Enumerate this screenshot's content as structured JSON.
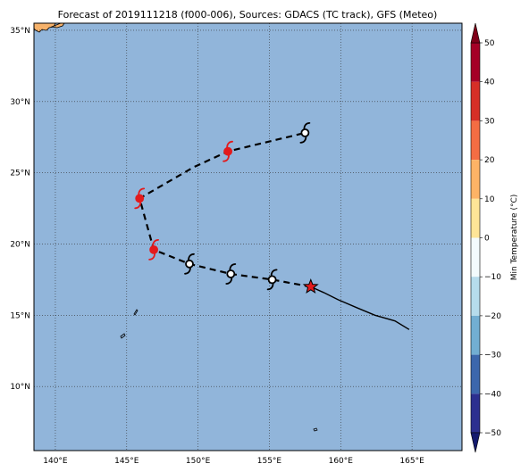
{
  "title": "Forecast of 2019111218 (f000-006), Sources: GDACS (TC track), GFS (Meteo)",
  "colors": {
    "ocean": "#91b5da",
    "land": "#f6b26b",
    "track": "#000000",
    "current_marker": "#e31a1c",
    "cyclone_red": "#e31a1c",
    "cyclone_white": "#ffffff"
  },
  "map": {
    "lon_range": [
      138.5,
      168.5
    ],
    "lat_range": [
      5.5,
      35.5
    ],
    "lon_ticks": [
      {
        "value": 140,
        "label": "140°E"
      },
      {
        "value": 145,
        "label": "145°E"
      },
      {
        "value": 150,
        "label": "150°E"
      },
      {
        "value": 155,
        "label": "155°E"
      },
      {
        "value": 160,
        "label": "160°E"
      },
      {
        "value": 165,
        "label": "165°E"
      }
    ],
    "lat_ticks": [
      {
        "value": 10,
        "label": "10°N"
      },
      {
        "value": 15,
        "label": "15°N"
      },
      {
        "value": 20,
        "label": "20°N"
      },
      {
        "value": 25,
        "label": "25°N"
      },
      {
        "value": 30,
        "label": "30°N"
      },
      {
        "value": 35,
        "label": "35°N"
      }
    ],
    "grid": "dotted",
    "past_track": [
      [
        164.8,
        14.0
      ],
      [
        163.8,
        14.6
      ],
      [
        162.4,
        15.0
      ],
      [
        161.2,
        15.5
      ],
      [
        159.8,
        16.1
      ],
      [
        158.8,
        16.6
      ],
      [
        157.9,
        17.0
      ]
    ],
    "forecast_track": [
      [
        157.9,
        17.0
      ],
      [
        155.2,
        17.5
      ],
      [
        152.3,
        17.9
      ],
      [
        149.4,
        18.6
      ],
      [
        146.9,
        19.6
      ],
      [
        145.9,
        23.2
      ],
      [
        149.7,
        25.4
      ],
      [
        152.1,
        26.5
      ],
      [
        157.5,
        27.8
      ]
    ],
    "current_position": [
      157.9,
      17.0
    ],
    "cyclone_symbols": [
      {
        "lon": 155.2,
        "lat": 17.5,
        "style": "white",
        "icon": "cyclone-icon"
      },
      {
        "lon": 152.3,
        "lat": 17.9,
        "style": "white",
        "icon": "cyclone-icon"
      },
      {
        "lon": 149.4,
        "lat": 18.6,
        "style": "white",
        "icon": "cyclone-icon"
      },
      {
        "lon": 146.9,
        "lat": 19.6,
        "style": "red",
        "icon": "cyclone-icon"
      },
      {
        "lon": 145.9,
        "lat": 23.2,
        "style": "red",
        "icon": "cyclone-icon"
      },
      {
        "lon": 152.1,
        "lat": 26.5,
        "style": "red",
        "icon": "cyclone-icon"
      },
      {
        "lon": 157.5,
        "lat": 27.8,
        "style": "white",
        "icon": "cyclone-icon"
      }
    ]
  },
  "colorbar": {
    "label": "Min Temperature (°C)",
    "range": [
      -50,
      50
    ],
    "ticks": [
      {
        "value": 50,
        "label": "50"
      },
      {
        "value": 40,
        "label": "40"
      },
      {
        "value": 30,
        "label": "30"
      },
      {
        "value": 20,
        "label": "20"
      },
      {
        "value": 10,
        "label": "10"
      },
      {
        "value": 0,
        "label": "0"
      },
      {
        "value": -10,
        "label": "−10"
      },
      {
        "value": -20,
        "label": "−20"
      },
      {
        "value": -30,
        "label": "−30"
      },
      {
        "value": -40,
        "label": "−40"
      },
      {
        "value": -50,
        "label": "−50"
      }
    ],
    "bins": [
      {
        "from": 40,
        "to": 50,
        "color": "#a50026"
      },
      {
        "from": 30,
        "to": 40,
        "color": "#d62f27"
      },
      {
        "from": 20,
        "to": 30,
        "color": "#f46d43"
      },
      {
        "from": 10,
        "to": 20,
        "color": "#fdb366"
      },
      {
        "from": 0,
        "to": 10,
        "color": "#fee597"
      },
      {
        "from": -10,
        "to": 0,
        "color": "#f3fbfd"
      },
      {
        "from": -20,
        "to": -10,
        "color": "#b6dcec"
      },
      {
        "from": -30,
        "to": -20,
        "color": "#72aed2"
      },
      {
        "from": -40,
        "to": -30,
        "color": "#3c67ac"
      },
      {
        "from": -50,
        "to": -40,
        "color": "#2c2f8f"
      }
    ],
    "extend_top_color": "#7f0019",
    "extend_bottom_color": "#141a6e"
  }
}
